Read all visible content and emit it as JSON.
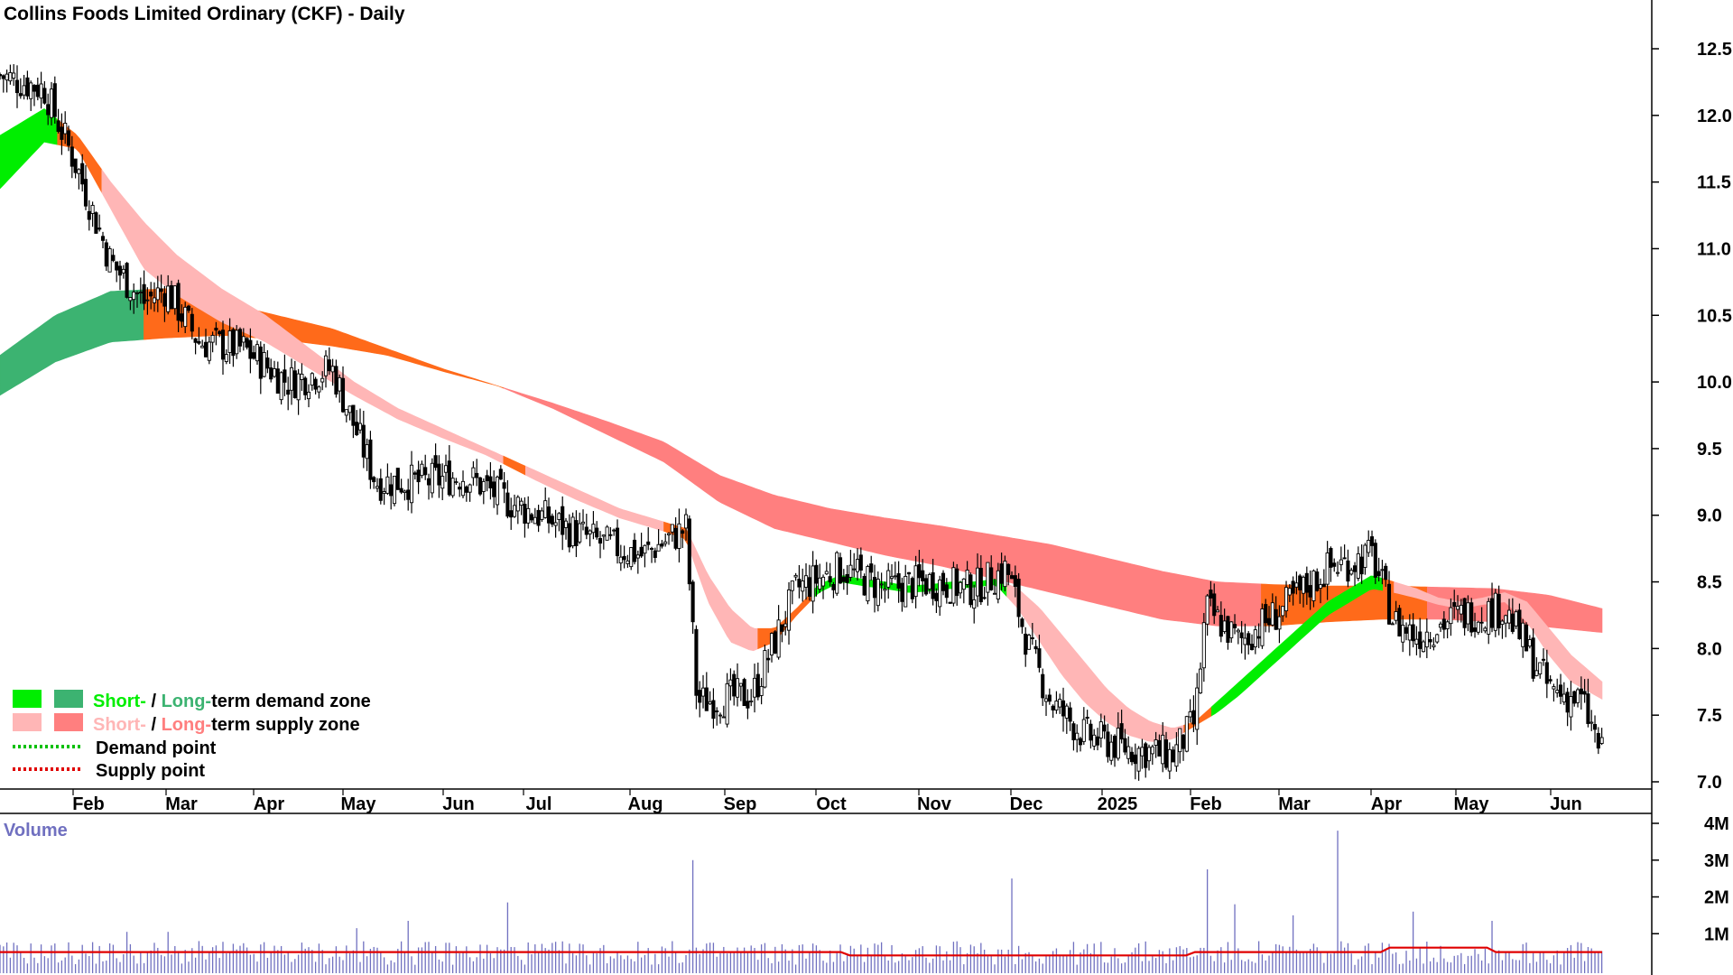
{
  "chart_data": {
    "type": "candlestick",
    "title": "Collins Foods Limited Ordinary (CKF) - Daily",
    "price_axis": {
      "ticks": [
        "12.5",
        "12.0",
        "11.5",
        "11.0",
        "10.5",
        "10.0",
        "9.5",
        "9.0",
        "8.5",
        "8.0",
        "7.5",
        "7.0"
      ],
      "ylim": [
        6.95,
        12.85
      ]
    },
    "time_axis": {
      "ticks": [
        "Feb",
        "Mar",
        "Apr",
        "May",
        "Jun",
        "Jul",
        "Aug",
        "Sep",
        "Oct",
        "Nov",
        "Dec",
        "2025",
        "Feb",
        "Mar",
        "Apr",
        "May",
        "Jun"
      ]
    },
    "price_anchors": {
      "x": [
        0,
        40,
        70,
        100,
        130,
        150,
        180,
        220,
        260,
        300,
        340,
        380,
        420,
        460,
        500,
        540,
        580,
        620,
        630,
        680,
        720,
        760,
        800,
        840,
        880,
        910,
        930,
        950,
        980,
        1020,
        1060,
        1080,
        1090,
        1120,
        1160,
        1200,
        1240,
        1260,
        1280,
        1320,
        1360,
        1380,
        1400,
        1430,
        1448
      ],
      "close": [
        12.3,
        12.2,
        11.6,
        10.9,
        10.6,
        10.7,
        10.3,
        10.25,
        10.0,
        10.1,
        9.25,
        9.25,
        9.3,
        9.1,
        8.95,
        8.8,
        8.7,
        8.9,
        7.6,
        7.65,
        8.45,
        8.6,
        8.45,
        8.5,
        8.45,
        8.6,
        8.0,
        7.6,
        7.35,
        7.25,
        7.2,
        7.45,
        8.3,
        8.05,
        8.3,
        8.6,
        8.7,
        8.2,
        8.1,
        8.25,
        8.3,
        8.0,
        7.7,
        7.6,
        7.2
      ]
    },
    "short_term_band": {
      "x": [
        0,
        40,
        70,
        100,
        130,
        160,
        200,
        240,
        280,
        320,
        360,
        400,
        440,
        480,
        520,
        560,
        600,
        620,
        640,
        660,
        680,
        700,
        720,
        740,
        760,
        780,
        800,
        820,
        840,
        860,
        880,
        900,
        920,
        940,
        960,
        980,
        1000,
        1020,
        1040,
        1060,
        1080,
        1100,
        1120,
        1140,
        1160,
        1180,
        1200,
        1220,
        1240,
        1260,
        1280,
        1300,
        1320,
        1340,
        1360,
        1380,
        1400,
        1420,
        1448
      ],
      "upper": [
        11.85,
        12.05,
        11.85,
        11.5,
        11.2,
        10.95,
        10.7,
        10.5,
        10.25,
        10.0,
        9.8,
        9.65,
        9.5,
        9.35,
        9.2,
        9.05,
        8.95,
        8.9,
        8.55,
        8.3,
        8.15,
        8.15,
        8.3,
        8.48,
        8.55,
        8.52,
        8.5,
        8.47,
        8.48,
        8.5,
        8.5,
        8.52,
        8.45,
        8.3,
        8.1,
        7.9,
        7.7,
        7.55,
        7.45,
        7.4,
        7.45,
        7.6,
        7.75,
        7.9,
        8.05,
        8.2,
        8.35,
        8.45,
        8.55,
        8.5,
        8.45,
        8.38,
        8.35,
        8.38,
        8.42,
        8.35,
        8.15,
        7.95,
        7.75
      ],
      "lower": [
        11.45,
        11.8,
        11.75,
        11.3,
        10.85,
        10.65,
        10.45,
        10.3,
        10.1,
        9.9,
        9.72,
        9.58,
        9.45,
        9.28,
        9.12,
        8.98,
        8.88,
        8.82,
        8.35,
        8.05,
        7.98,
        8.05,
        8.25,
        8.42,
        8.5,
        8.47,
        8.45,
        8.42,
        8.43,
        8.45,
        8.46,
        8.48,
        8.3,
        8.05,
        7.8,
        7.6,
        7.45,
        7.35,
        7.3,
        7.32,
        7.42,
        7.52,
        7.65,
        7.8,
        7.95,
        8.1,
        8.25,
        8.35,
        8.45,
        8.42,
        8.38,
        8.33,
        8.3,
        8.33,
        8.35,
        8.2,
        7.95,
        7.75,
        7.62
      ],
      "segments": [
        {
          "from": 0,
          "to": 52,
          "zone": "short_demand"
        },
        {
          "from": 52,
          "to": 92,
          "zone": "long_supply_orange"
        },
        {
          "from": 92,
          "to": 455,
          "zone": "short_supply"
        },
        {
          "from": 455,
          "to": 475,
          "zone": "long_supply_orange"
        },
        {
          "from": 475,
          "to": 600,
          "zone": "short_supply"
        },
        {
          "from": 600,
          "to": 622,
          "zone": "long_supply_orange"
        },
        {
          "from": 622,
          "to": 685,
          "zone": "short_supply"
        },
        {
          "from": 685,
          "to": 735,
          "zone": "long_supply_orange"
        },
        {
          "from": 735,
          "to": 910,
          "zone": "short_demand"
        },
        {
          "from": 910,
          "to": 1070,
          "zone": "short_supply"
        },
        {
          "from": 1070,
          "to": 1095,
          "zone": "long_supply_orange"
        },
        {
          "from": 1095,
          "to": 1250,
          "zone": "short_demand"
        },
        {
          "from": 1250,
          "to": 1260,
          "zone": "long_supply_orange"
        },
        {
          "from": 1260,
          "to": 1448,
          "zone": "short_supply"
        }
      ]
    },
    "long_term_band": {
      "x": [
        0,
        50,
        100,
        150,
        200,
        250,
        300,
        350,
        400,
        450,
        500,
        550,
        600,
        650,
        700,
        750,
        800,
        850,
        900,
        950,
        1000,
        1050,
        1100,
        1150,
        1200,
        1250,
        1300,
        1350,
        1400,
        1448
      ],
      "upper": [
        10.2,
        10.5,
        10.68,
        10.7,
        10.6,
        10.5,
        10.4,
        10.25,
        10.1,
        9.97,
        9.84,
        9.7,
        9.55,
        9.3,
        9.15,
        9.05,
        8.98,
        8.92,
        8.85,
        8.78,
        8.68,
        8.58,
        8.5,
        8.48,
        8.47,
        8.47,
        8.46,
        8.45,
        8.4,
        8.3
      ],
      "lower": [
        9.9,
        10.15,
        10.3,
        10.33,
        10.35,
        10.32,
        10.27,
        10.2,
        10.08,
        9.97,
        9.8,
        9.6,
        9.4,
        9.1,
        8.9,
        8.8,
        8.7,
        8.62,
        8.52,
        8.42,
        8.32,
        8.22,
        8.17,
        8.17,
        8.2,
        8.22,
        8.22,
        8.2,
        8.16,
        8.12
      ],
      "segments": [
        {
          "from": 0,
          "to": 130,
          "zone": "long_demand"
        },
        {
          "from": 130,
          "to": 455,
          "zone": "long_supply_orange"
        },
        {
          "from": 455,
          "to": 1140,
          "zone": "long_supply"
        },
        {
          "from": 1140,
          "to": 1290,
          "zone": "long_supply_orange"
        },
        {
          "from": 1290,
          "to": 1448,
          "zone": "long_supply"
        }
      ]
    },
    "volume": {
      "title": "Volume",
      "ticks": [
        "4M",
        "3M",
        "2M",
        "1M"
      ],
      "ylim": [
        0,
        4000000
      ],
      "spikes": [
        {
          "x": 625,
          "v": 3000000
        },
        {
          "x": 1210,
          "v": 3800000
        },
        {
          "x": 1090,
          "v": 2750000
        },
        {
          "x": 915,
          "v": 2500000
        },
        {
          "x": 460,
          "v": 1850000
        },
        {
          "x": 1115,
          "v": 1800000
        },
        {
          "x": 1278,
          "v": 1600000
        },
        {
          "x": 1168,
          "v": 1500000
        },
        {
          "x": 322,
          "v": 1150000
        },
        {
          "x": 368,
          "v": 1350000
        },
        {
          "x": 115,
          "v": 1050000
        },
        {
          "x": 153,
          "v": 1050000
        },
        {
          "x": 1350,
          "v": 1350000
        }
      ],
      "average_level": 500000
    },
    "legend": [
      {
        "label_a": "Short-",
        "sep": " / ",
        "label_b": "Long-",
        "rest": "term demand zone",
        "color_a": "#00ee00",
        "color_b": "#3cb371"
      },
      {
        "label_a": "Short-",
        "sep": " / ",
        "label_b": "Long-",
        "rest": "term supply zone",
        "color_a": "#ffb6b6",
        "color_b": "#ff7f7f"
      },
      {
        "label": "Demand point",
        "color": "#00c000",
        "dotted": true
      },
      {
        "label": "Supply point",
        "color": "#e00000",
        "dotted": true
      }
    ],
    "colors": {
      "short_demand": "#00ee00",
      "long_demand": "#3cb371",
      "short_supply": "#ffb6b6",
      "long_supply": "#ff7f7f",
      "long_supply_orange": "#ff6a1a",
      "volume_bar": "#7070c0",
      "volume_avg": "#e00000",
      "volume_title": "#7070c0"
    }
  }
}
